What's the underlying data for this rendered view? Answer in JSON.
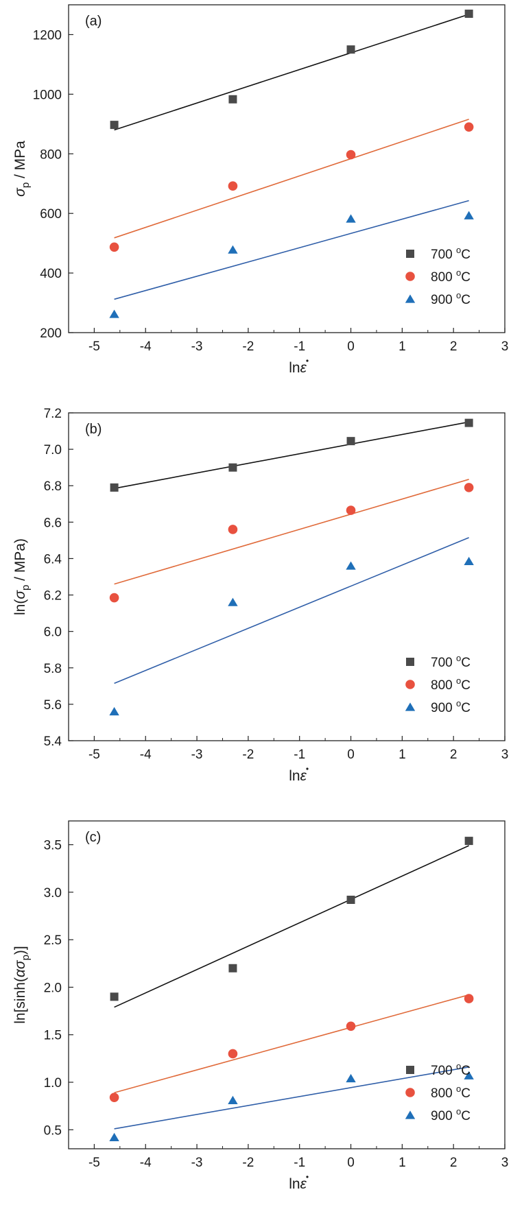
{
  "chart_data": [
    {
      "type": "scatter",
      "panel_label": "(a)",
      "xlabel": "lnε̇",
      "ylabel": "σp / MPa",
      "xlim": [
        -5.5,
        3
      ],
      "ylim": [
        200,
        1300
      ],
      "xticks": [
        -5,
        -4,
        -3,
        -2,
        -1,
        0,
        1,
        2,
        3
      ],
      "yticks": [
        200,
        400,
        600,
        800,
        1000,
        1200
      ],
      "xtick_labels": [
        "-5",
        "-4",
        "-3",
        "-2",
        "-1",
        "0",
        "1",
        "2",
        "3"
      ],
      "ytick_labels": [
        "200",
        "400",
        "600",
        "800",
        "1000",
        "1200"
      ],
      "legend_position": "bottom-right",
      "series": [
        {
          "name": "700 °C",
          "marker": "square",
          "color": "#4a4a4a",
          "line_color": "#111111",
          "x": [
            -4.61,
            -2.3,
            0,
            2.3
          ],
          "y": [
            897,
            983,
            1150,
            1270
          ],
          "fit": [
            [
              -4.61,
              880
            ],
            [
              2.3,
              1268
            ]
          ]
        },
        {
          "name": "800 °C",
          "marker": "circle",
          "color": "#e8513f",
          "line_color": "#e06a3a",
          "x": [
            -4.61,
            -2.3,
            0,
            2.3
          ],
          "y": [
            487,
            692,
            797,
            890
          ],
          "fit": [
            [
              -4.61,
              518
            ],
            [
              2.3,
              916
            ]
          ]
        },
        {
          "name": "900 °C",
          "marker": "triangle",
          "color": "#1f6fb8",
          "line_color": "#2f5ea8",
          "x": [
            -4.61,
            -2.3,
            0,
            2.3
          ],
          "y": [
            262,
            478,
            582,
            593
          ],
          "fit": [
            [
              -4.61,
              312
            ],
            [
              2.3,
              643
            ]
          ]
        }
      ]
    },
    {
      "type": "scatter",
      "panel_label": "(b)",
      "xlabel": "lnε̇",
      "ylabel": "ln(σp / MPa)",
      "xlim": [
        -5.5,
        3
      ],
      "ylim": [
        5.4,
        7.2
      ],
      "xticks": [
        -5,
        -4,
        -3,
        -2,
        -1,
        0,
        1,
        2,
        3
      ],
      "yticks": [
        5.4,
        5.6,
        5.8,
        6.0,
        6.2,
        6.4,
        6.6,
        6.8,
        7.0,
        7.2
      ],
      "xtick_labels": [
        "-5",
        "-4",
        "-3",
        "-2",
        "-1",
        "0",
        "1",
        "2",
        "3"
      ],
      "ytick_labels": [
        "5.4",
        "5.6",
        "5.8",
        "6.0",
        "6.2",
        "6.4",
        "6.6",
        "6.8",
        "7.0",
        "7.2"
      ],
      "legend_position": "bottom-right",
      "series": [
        {
          "name": "700 °C",
          "marker": "square",
          "color": "#4a4a4a",
          "line_color": "#111111",
          "x": [
            -4.61,
            -2.3,
            0,
            2.3
          ],
          "y": [
            6.79,
            6.9,
            7.045,
            7.145
          ],
          "fit": [
            [
              -4.61,
              6.785
            ],
            [
              2.3,
              7.15
            ]
          ]
        },
        {
          "name": "800 °C",
          "marker": "circle",
          "color": "#e8513f",
          "line_color": "#e06a3a",
          "x": [
            -4.61,
            -2.3,
            0,
            2.3
          ],
          "y": [
            6.185,
            6.56,
            6.665,
            6.79
          ],
          "fit": [
            [
              -4.61,
              6.26
            ],
            [
              2.3,
              6.835
            ]
          ]
        },
        {
          "name": "900 °C",
          "marker": "triangle",
          "color": "#1f6fb8",
          "line_color": "#2f5ea8",
          "x": [
            -4.61,
            -2.3,
            0,
            2.3
          ],
          "y": [
            5.56,
            6.16,
            6.36,
            6.385
          ],
          "fit": [
            [
              -4.61,
              5.715
            ],
            [
              2.3,
              6.515
            ]
          ]
        }
      ]
    },
    {
      "type": "scatter",
      "panel_label": "(c)",
      "xlabel": "lnε̇",
      "ylabel": "ln[sinh(ασp)]",
      "xlim": [
        -5.5,
        3
      ],
      "ylim": [
        0.3,
        3.75
      ],
      "xticks": [
        -5,
        -4,
        -3,
        -2,
        -1,
        0,
        1,
        2,
        3
      ],
      "yticks": [
        0.5,
        1.0,
        1.5,
        2.0,
        2.5,
        3.0,
        3.5
      ],
      "xtick_labels": [
        "-5",
        "-4",
        "-3",
        "-2",
        "-1",
        "0",
        "1",
        "2",
        "3"
      ],
      "ytick_labels": [
        "0.5",
        "1.0",
        "1.5",
        "2.0",
        "2.5",
        "3.0",
        "3.5"
      ],
      "legend_position": "bottom-right",
      "series": [
        {
          "name": "700 °C",
          "marker": "square",
          "color": "#4a4a4a",
          "line_color": "#111111",
          "x": [
            -4.61,
            -2.3,
            0,
            2.3
          ],
          "y": [
            1.9,
            2.2,
            2.92,
            3.54
          ],
          "fit": [
            [
              -4.61,
              1.79
            ],
            [
              2.3,
              3.49
            ]
          ]
        },
        {
          "name": "800 °C",
          "marker": "circle",
          "color": "#e8513f",
          "line_color": "#e06a3a",
          "x": [
            -4.61,
            -2.3,
            0,
            2.3
          ],
          "y": [
            0.84,
            1.3,
            1.59,
            1.88
          ],
          "fit": [
            [
              -4.61,
              0.89
            ],
            [
              2.3,
              1.92
            ]
          ]
        },
        {
          "name": "900 °C",
          "marker": "triangle",
          "color": "#1f6fb8",
          "line_color": "#2f5ea8",
          "x": [
            -4.61,
            -2.3,
            0,
            2.3
          ],
          "y": [
            0.42,
            0.81,
            1.04,
            1.07
          ],
          "fit": [
            [
              -4.61,
              0.51
            ],
            [
              2.3,
              1.16
            ]
          ]
        }
      ]
    }
  ]
}
